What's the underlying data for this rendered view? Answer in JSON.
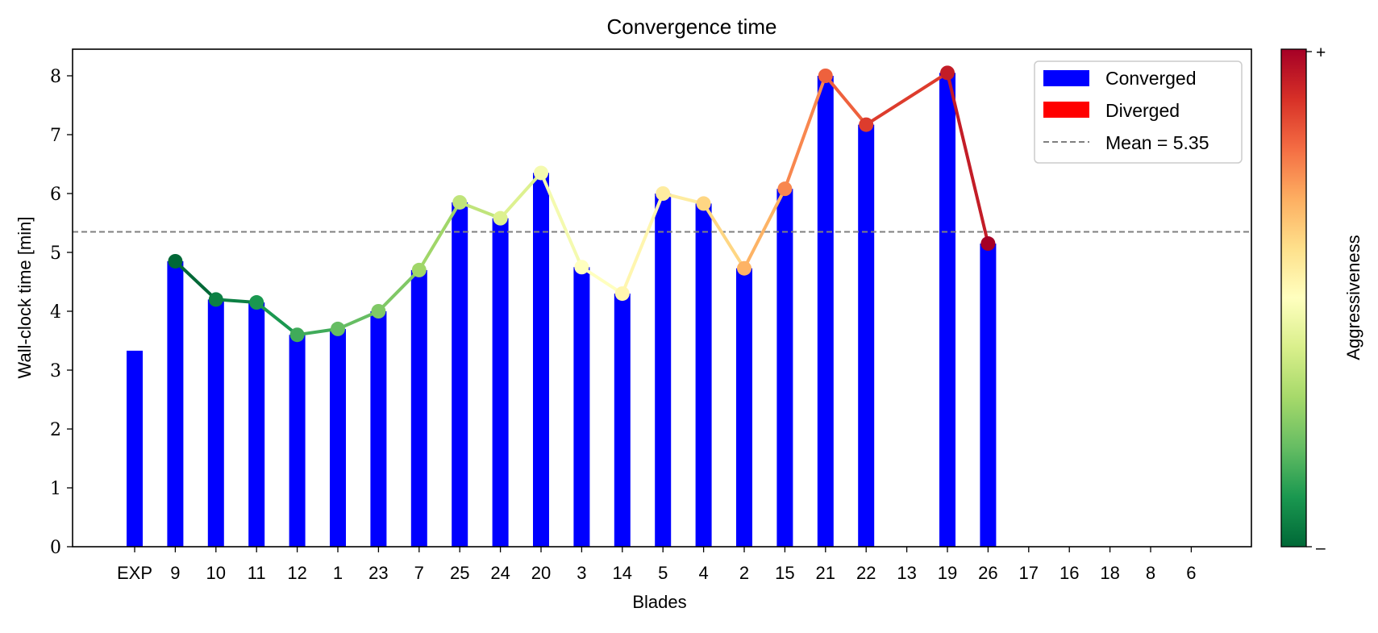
{
  "chart_data": {
    "type": "bar",
    "title": "Convergence time",
    "xlabel": "Blades",
    "ylabel": "Wall-clock time [min]",
    "categories": [
      "EXP",
      "9",
      "10",
      "11",
      "12",
      "1",
      "23",
      "7",
      "25",
      "24",
      "20",
      "3",
      "14",
      "5",
      "4",
      "2",
      "15",
      "21",
      "22",
      "13",
      "19",
      "26",
      "17",
      "16",
      "18",
      "8",
      "6"
    ],
    "ylim": [
      0,
      8.45
    ],
    "yticks": [
      0,
      1,
      2,
      3,
      4,
      5,
      6,
      7,
      8
    ],
    "grid": false,
    "series": [
      {
        "name": "Converged",
        "color": "#0000ff",
        "values": [
          3.33,
          4.85,
          4.2,
          4.15,
          3.6,
          3.7,
          4.0,
          4.7,
          5.85,
          5.58,
          6.35,
          4.75,
          4.3,
          6.0,
          5.83,
          4.73,
          6.08,
          8.0,
          7.17,
          null,
          8.05,
          5.15,
          null,
          null,
          null,
          null,
          null
        ]
      },
      {
        "name": "Diverged",
        "color": "#ff0000",
        "values": [
          null,
          null,
          null,
          null,
          null,
          null,
          null,
          null,
          null,
          null,
          null,
          null,
          null,
          null,
          null,
          null,
          null,
          null,
          null,
          null,
          null,
          null,
          null,
          null,
          null,
          null,
          null
        ]
      }
    ],
    "trend": {
      "colormap": [
        "#006837",
        "#1a9850",
        "#66bd63",
        "#a6d96a",
        "#d9ef8b",
        "#ffffbf",
        "#fee08b",
        "#fdae61",
        "#f46d43",
        "#d73027",
        "#a50026"
      ],
      "points": [
        {
          "x": "9",
          "y": 4.85,
          "t": 0.0
        },
        {
          "x": "10",
          "y": 4.2,
          "t": 0.05
        },
        {
          "x": "11",
          "y": 4.15,
          "t": 0.1
        },
        {
          "x": "12",
          "y": 3.6,
          "t": 0.15
        },
        {
          "x": "1",
          "y": 3.7,
          "t": 0.2
        },
        {
          "x": "23",
          "y": 4.0,
          "t": 0.24
        },
        {
          "x": "7",
          "y": 4.7,
          "t": 0.29
        },
        {
          "x": "25",
          "y": 5.85,
          "t": 0.35
        },
        {
          "x": "24",
          "y": 5.58,
          "t": 0.41
        },
        {
          "x": "20",
          "y": 6.35,
          "t": 0.47
        },
        {
          "x": "3",
          "y": 4.75,
          "t": 0.5
        },
        {
          "x": "14",
          "y": 4.3,
          "t": 0.53
        },
        {
          "x": "5",
          "y": 6.0,
          "t": 0.56
        },
        {
          "x": "4",
          "y": 5.83,
          "t": 0.62
        },
        {
          "x": "2",
          "y": 4.73,
          "t": 0.69
        },
        {
          "x": "15",
          "y": 6.08,
          "t": 0.76
        },
        {
          "x": "21",
          "y": 8.0,
          "t": 0.82
        },
        {
          "x": "22",
          "y": 7.17,
          "t": 0.88
        },
        {
          "x": "19",
          "y": 8.05,
          "t": 0.94
        },
        {
          "x": "26",
          "y": 5.15,
          "t": 1.0
        }
      ]
    },
    "mean": {
      "value": 5.35,
      "label": "Mean = 5.35",
      "color": "#808080"
    },
    "legend_placement": "top-right",
    "colorbar": {
      "label": "Aggressiveness",
      "top_label": "+",
      "bottom_label": "–"
    }
  }
}
